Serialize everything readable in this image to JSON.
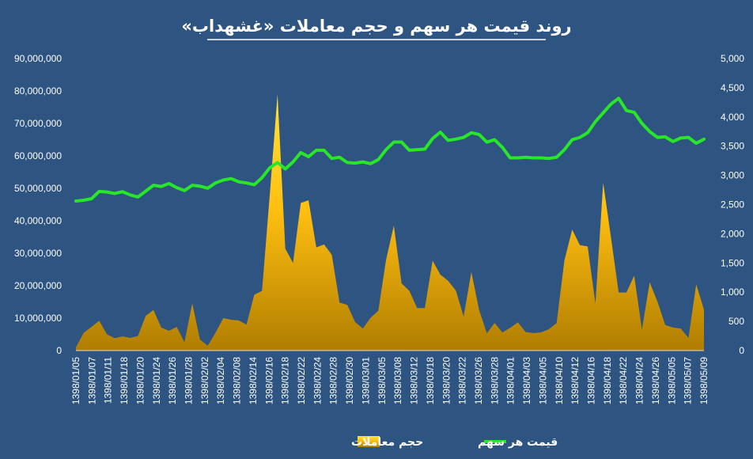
{
  "chart_data": {
    "type": "area",
    "title": "روند قیمت هر سهم و حجم معاملات «غشهداب»",
    "legend_position": "bottom",
    "grid": false,
    "y_left": {
      "min": 0,
      "max": 90000000,
      "ticks": [
        "0",
        "10,000,000",
        "20,000,000",
        "30,000,000",
        "40,000,000",
        "50,000,000",
        "60,000,000",
        "70,000,000",
        "80,000,000",
        "90,000,000"
      ]
    },
    "y_right": {
      "min": 0,
      "max": 5000,
      "ticks": [
        "0",
        "500",
        "1,000",
        "1,500",
        "2,000",
        "2,500",
        "3,000",
        "3,500",
        "4,000",
        "4,500",
        "5,000"
      ]
    },
    "x_tick_labels": [
      "1398/01/05",
      "1398/01/07",
      "1398/01/11",
      "1398/01/18",
      "1398/01/20",
      "1398/01/24",
      "1398/01/26",
      "1398/01/28",
      "1398/02/02",
      "1398/02/04",
      "1398/02/08",
      "1398/02/14",
      "1398/02/16",
      "1398/02/18",
      "1398/02/22",
      "1398/02/24",
      "1398/02/28",
      "1398/02/30",
      "1398/03/01",
      "1398/03/05",
      "1398/03/08",
      "1398/03/12",
      "1398/03/18",
      "1398/03/20",
      "1398/03/22",
      "1398/03/26",
      "1398/03/28",
      "1398/04/01",
      "1398/04/03",
      "1398/04/05",
      "1398/04/10",
      "1398/04/12",
      "1398/04/16",
      "1398/04/18",
      "1398/04/22",
      "1398/04/24",
      "1398/04/26",
      "1398/05/05",
      "1398/05/07",
      "1398/05/09"
    ],
    "series": [
      {
        "name": "حجم معاملات",
        "type": "area",
        "axis": "left",
        "color": "#f2b700",
        "values": [
          1000000,
          5500000,
          7300000,
          9200000,
          5000000,
          3800000,
          4400000,
          3900000,
          4500000,
          10700000,
          12500000,
          7100000,
          6100000,
          7300000,
          2600000,
          14500000,
          3400000,
          1500000,
          5500000,
          10000000,
          9500000,
          9300000,
          8000000,
          17200000,
          18400000,
          48000000,
          79000000,
          31400000,
          27000000,
          45500000,
          46300000,
          31800000,
          32700000,
          29500000,
          14800000,
          14100000,
          8800000,
          6800000,
          10100000,
          12300000,
          28000000,
          38500000,
          20700000,
          18400000,
          13100000,
          13100000,
          27700000,
          23400000,
          21500000,
          18500000,
          10500000,
          24200000,
          12500000,
          5300000,
          8500000,
          5600000,
          7000000,
          8700000,
          5700000,
          5400000,
          5600000,
          6600000,
          8500000,
          27800000,
          37300000,
          32500000,
          32100000,
          14500000,
          51700000,
          35000000,
          17900000,
          17900000,
          23100000,
          6500000,
          21000000,
          15100000,
          7900000,
          7100000,
          6800000,
          3900000,
          20400000,
          12600000
        ]
      },
      {
        "name": "قیمت هر سهم",
        "type": "line",
        "axis": "right",
        "color": "#28e628",
        "values": [
          2560,
          2575,
          2600,
          2725,
          2715,
          2690,
          2720,
          2665,
          2630,
          2730,
          2830,
          2810,
          2860,
          2790,
          2740,
          2830,
          2815,
          2780,
          2870,
          2920,
          2945,
          2890,
          2870,
          2840,
          2960,
          3130,
          3220,
          3110,
          3230,
          3390,
          3320,
          3430,
          3430,
          3290,
          3310,
          3220,
          3210,
          3230,
          3200,
          3270,
          3440,
          3570,
          3570,
          3430,
          3440,
          3450,
          3630,
          3740,
          3600,
          3620,
          3650,
          3730,
          3700,
          3570,
          3610,
          3480,
          3300,
          3300,
          3310,
          3300,
          3300,
          3290,
          3310,
          3440,
          3610,
          3650,
          3730,
          3920,
          4070,
          4220,
          4320,
          4110,
          4080,
          3890,
          3750,
          3650,
          3660,
          3580,
          3640,
          3650,
          3550,
          3620
        ]
      }
    ]
  }
}
